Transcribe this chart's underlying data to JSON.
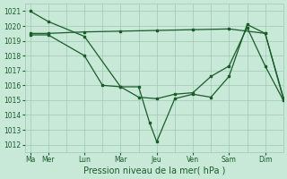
{
  "xlabel": "Pression niveau de la mer( hPa )",
  "bg_color": "#c8e8d8",
  "grid_color": "#a0c8b0",
  "line_color": "#1a5c2a",
  "ylim": [
    1011.5,
    1021.5
  ],
  "yticks": [
    1012,
    1013,
    1014,
    1015,
    1016,
    1017,
    1018,
    1019,
    1020,
    1021
  ],
  "xtick_labels": [
    "Ma",
    "Mer",
    "Lun",
    "Mar",
    "Jeu",
    "Ven",
    "Sam",
    "Dim"
  ],
  "xtick_positions": [
    0,
    0.5,
    1.5,
    2.5,
    3.5,
    4.5,
    5.5,
    6.5
  ],
  "xlim": [
    -0.15,
    7.0
  ],
  "line1_x": [
    0,
    0.5,
    1.5,
    2.5,
    3.0,
    3.3,
    3.5,
    4.0,
    4.5,
    5.0,
    5.5,
    6.0,
    6.5,
    7.0
  ],
  "line1_y": [
    1021,
    1020.3,
    1019.3,
    1015.9,
    1015.9,
    1013.5,
    1012.2,
    1015.1,
    1015.4,
    1015.2,
    1016.6,
    1020.1,
    1019.5,
    1015.1
  ],
  "line2_x": [
    0,
    0.5,
    1.5,
    2.0,
    2.5,
    3.0,
    3.5,
    4.0,
    4.5,
    5.0,
    5.5,
    6.0,
    6.5,
    7.0
  ],
  "line2_y": [
    1019.4,
    1019.4,
    1018.0,
    1016.0,
    1015.9,
    1015.2,
    1015.1,
    1015.4,
    1015.5,
    1016.6,
    1017.3,
    1019.9,
    1017.3,
    1015.0
  ],
  "line3_x": [
    0,
    0.5,
    1.5,
    2.5,
    3.5,
    4.5,
    5.5,
    6.5,
    7.0
  ],
  "line3_y": [
    1019.5,
    1019.5,
    1019.6,
    1019.65,
    1019.7,
    1019.75,
    1019.8,
    1019.5,
    1015.2
  ],
  "figsize": [
    3.2,
    2.0
  ],
  "dpi": 100,
  "tick_fontsize": 5.5,
  "xlabel_fontsize": 7
}
